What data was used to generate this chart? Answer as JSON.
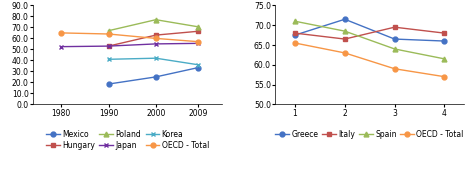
{
  "left": {
    "x": [
      1980,
      1990,
      2000,
      2009
    ],
    "series": [
      {
        "name": "Mexico",
        "values": [
          null,
          18.5,
          25.0,
          33.5
        ],
        "color": "#4472C4",
        "marker": "o"
      },
      {
        "name": "Hungary",
        "values": [
          null,
          53.0,
          63.0,
          66.5
        ],
        "color": "#C0504D",
        "marker": "s"
      },
      {
        "name": "Poland",
        "values": [
          null,
          67.0,
          77.0,
          70.5
        ],
        "color": "#9BBB59",
        "marker": "^"
      },
      {
        "name": "Japan",
        "values": [
          52.5,
          53.0,
          55.0,
          55.5
        ],
        "color": "#7030A0",
        "marker": "x"
      },
      {
        "name": "Korea",
        "values": [
          null,
          41.0,
          42.0,
          36.0
        ],
        "color": "#4BACC6",
        "marker": "x"
      },
      {
        "name": "OECD - Total",
        "values": [
          65.0,
          64.0,
          60.0,
          57.0
        ],
        "color": "#F79646",
        "marker": "o"
      }
    ],
    "ylim": [
      0.0,
      90.0
    ],
    "yticks": [
      0.0,
      10.0,
      20.0,
      30.0,
      40.0,
      50.0,
      60.0,
      70.0,
      80.0,
      90.0
    ],
    "xticks": [
      1980,
      1990,
      2000,
      2009
    ],
    "xlim": [
      1974,
      2014
    ]
  },
  "right": {
    "x": [
      1,
      2,
      3,
      4
    ],
    "series": [
      {
        "name": "Greece",
        "values": [
          67.5,
          71.5,
          66.5,
          66.0
        ],
        "color": "#4472C4",
        "marker": "o"
      },
      {
        "name": "Italy",
        "values": [
          68.0,
          66.5,
          69.5,
          68.0
        ],
        "color": "#C0504D",
        "marker": "s"
      },
      {
        "name": "Spain",
        "values": [
          71.0,
          68.5,
          64.0,
          61.5
        ],
        "color": "#9BBB59",
        "marker": "^"
      },
      {
        "name": "OECD - Total",
        "values": [
          65.5,
          63.0,
          59.0,
          57.0
        ],
        "color": "#F79646",
        "marker": "o"
      }
    ],
    "ylim": [
      50.0,
      75.0
    ],
    "yticks": [
      50.0,
      55.0,
      60.0,
      65.0,
      70.0,
      75.0
    ],
    "xticks": [
      1,
      2,
      3,
      4
    ],
    "xlim": [
      0.6,
      4.4
    ]
  },
  "legend_fontsize": 5.5,
  "tick_fontsize": 5.5,
  "linewidth": 1.0,
  "markersize": 3.5
}
